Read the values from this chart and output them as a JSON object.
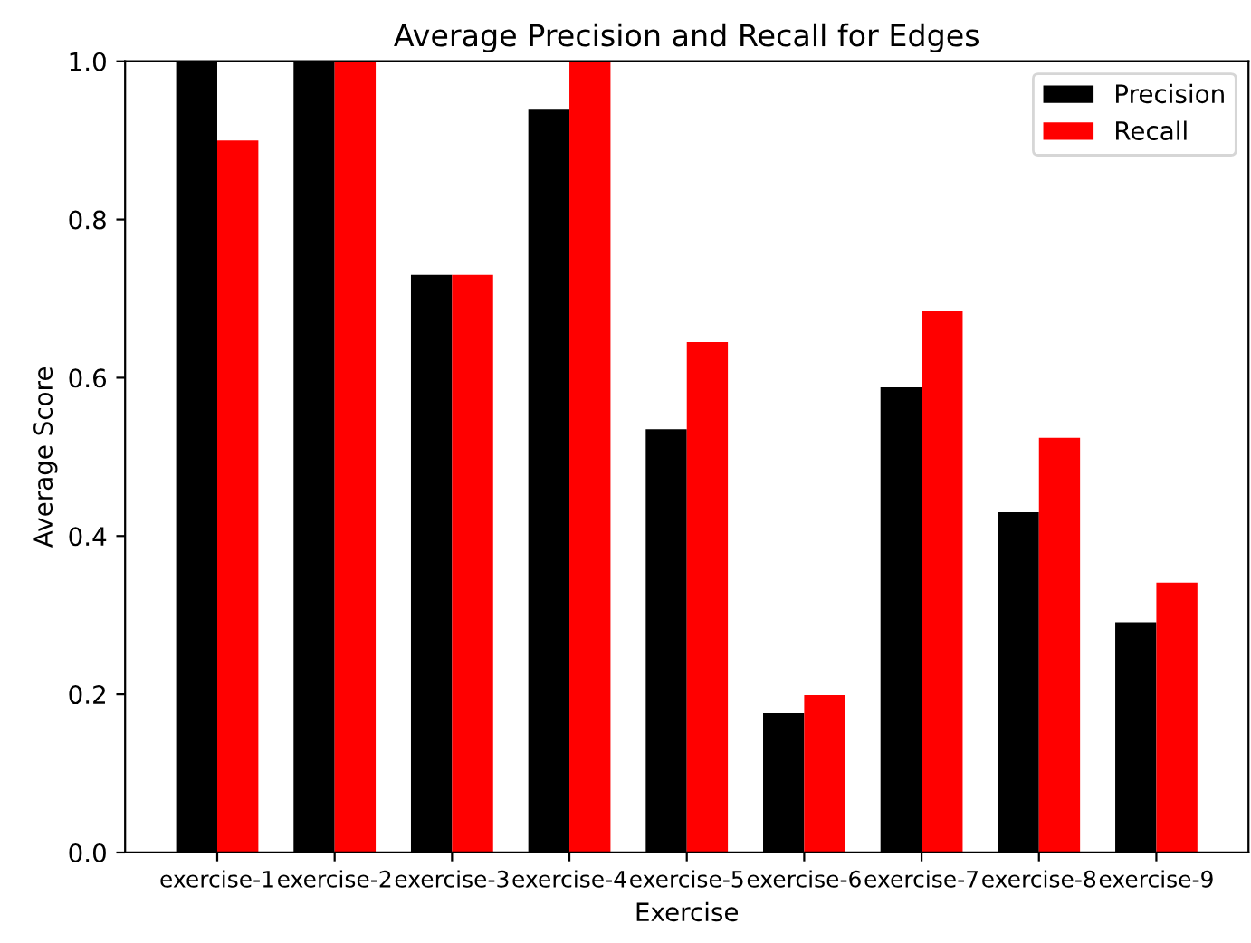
{
  "chart_data": {
    "type": "bar",
    "title": "Average Precision and Recall for Edges",
    "xlabel": "Exercise",
    "ylabel": "Average Score",
    "categories": [
      "exercise-1",
      "exercise-2",
      "exercise-3",
      "exercise-4",
      "exercise-5",
      "exercise-6",
      "exercise-7",
      "exercise-8",
      "exercise-9"
    ],
    "series": [
      {
        "name": "Precision",
        "color": "#000000",
        "values": [
          1.0,
          1.0,
          0.73,
          0.94,
          0.535,
          0.176,
          0.588,
          0.43,
          0.291
        ]
      },
      {
        "name": "Recall",
        "color": "#ff0000",
        "values": [
          0.9,
          1.0,
          0.73,
          1.0,
          0.645,
          0.199,
          0.684,
          0.524,
          0.341
        ]
      }
    ],
    "ylim": [
      0,
      1
    ],
    "yticks": [
      {
        "value": 0,
        "label": "0.0"
      },
      {
        "value": 0.2,
        "label": "0.2"
      },
      {
        "value": 0.4,
        "label": "0.4"
      },
      {
        "value": 0.6,
        "label": "0.6"
      },
      {
        "value": 0.8,
        "label": "0.8"
      },
      {
        "value": 1,
        "label": "1.0"
      }
    ],
    "grid": false,
    "legend": "top right"
  }
}
